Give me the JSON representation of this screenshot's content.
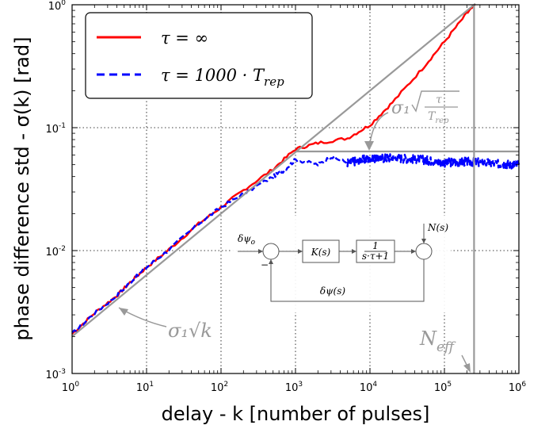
{
  "chart_data": {
    "type": "line",
    "xscale": "log",
    "yscale": "log",
    "xlim": [
      1,
      1000000
    ],
    "ylim": [
      0.001,
      1
    ],
    "grid": true,
    "legend_position": "top-left",
    "xlabel": "delay - k [number of pulses]",
    "ylabel": "phase difference std - σ(k) [rad]",
    "x_ticks": [
      {
        "value": 1,
        "base": "10",
        "exp": "0"
      },
      {
        "value": 10,
        "base": "10",
        "exp": "1"
      },
      {
        "value": 100,
        "base": "10",
        "exp": "2"
      },
      {
        "value": 1000,
        "base": "10",
        "exp": "3"
      },
      {
        "value": 10000,
        "base": "10",
        "exp": "4"
      },
      {
        "value": 100000,
        "base": "10",
        "exp": "5"
      },
      {
        "value": 1000000,
        "base": "10",
        "exp": "6"
      }
    ],
    "y_ticks": [
      {
        "value": 0.001,
        "base": "10",
        "exp": "-3"
      },
      {
        "value": 0.01,
        "base": "10",
        "exp": "-2"
      },
      {
        "value": 0.1,
        "base": "10",
        "exp": "-1"
      },
      {
        "value": 1,
        "base": "10",
        "exp": "0"
      }
    ],
    "series": [
      {
        "name": "τ = ∞",
        "color": "#ff0000",
        "style": "solid",
        "x": [
          1,
          2,
          4,
          6,
          10,
          20,
          50,
          100,
          200,
          500,
          1000,
          2000,
          5000,
          10000,
          20000,
          50000,
          100000,
          200000,
          260000
        ],
        "y": [
          0.0021,
          0.0031,
          0.0043,
          0.0055,
          0.0073,
          0.0102,
          0.0165,
          0.0225,
          0.031,
          0.046,
          0.067,
          0.075,
          0.082,
          0.105,
          0.16,
          0.3,
          0.5,
          0.85,
          1.0
        ]
      },
      {
        "name": "τ = 1000 · T_rep",
        "color": "#0000ff",
        "style": "dashed",
        "x": [
          1,
          2,
          4,
          6,
          10,
          20,
          50,
          100,
          200,
          500,
          700,
          1000,
          2000,
          3000,
          5000,
          10000,
          20000,
          50000,
          100000,
          200000,
          500000,
          1000000
        ],
        "y": [
          0.0021,
          0.0031,
          0.0043,
          0.0055,
          0.0073,
          0.0102,
          0.0165,
          0.0225,
          0.029,
          0.04,
          0.045,
          0.055,
          0.05,
          0.058,
          0.052,
          0.056,
          0.057,
          0.055,
          0.052,
          0.053,
          0.051,
          0.05
        ]
      }
    ],
    "reference_lines": [
      {
        "label": "σ1√k",
        "color": "#999999",
        "x": [
          1,
          260000
        ],
        "y": [
          0.002,
          1.02
        ]
      },
      {
        "label": "σ1√(τ/Trep)",
        "color": "#999999",
        "x": [
          1000,
          1000000
        ],
        "y": [
          0.064,
          0.064
        ]
      },
      {
        "label": "N_eff",
        "color": "#999999",
        "x": [
          250000,
          250000
        ],
        "y": [
          1,
          0.001
        ]
      }
    ],
    "annotations": {
      "sqrt_k": "σ₁√k",
      "sqrt_tau_sigma": "σ₁",
      "sqrt_tau_num": "τ",
      "sqrt_tau_den": "T",
      "sqrt_tau_den_sub": "rep",
      "neff_main": "N",
      "neff_sub": "eff"
    },
    "legend": [
      {
        "label_main": "τ = ∞",
        "color": "#ff0000"
      },
      {
        "label_main": "τ = 1000 · T",
        "label_sub": "rep",
        "color": "#0000ff"
      }
    ],
    "block_diagram": {
      "input": "δψ",
      "input_sub": "o",
      "block1": "K(s)",
      "block2_num": "1",
      "block2_den": "s·τ+1",
      "disturbance": "N(s)",
      "feedback": "δψ(s)",
      "minus_sign": "−"
    }
  }
}
